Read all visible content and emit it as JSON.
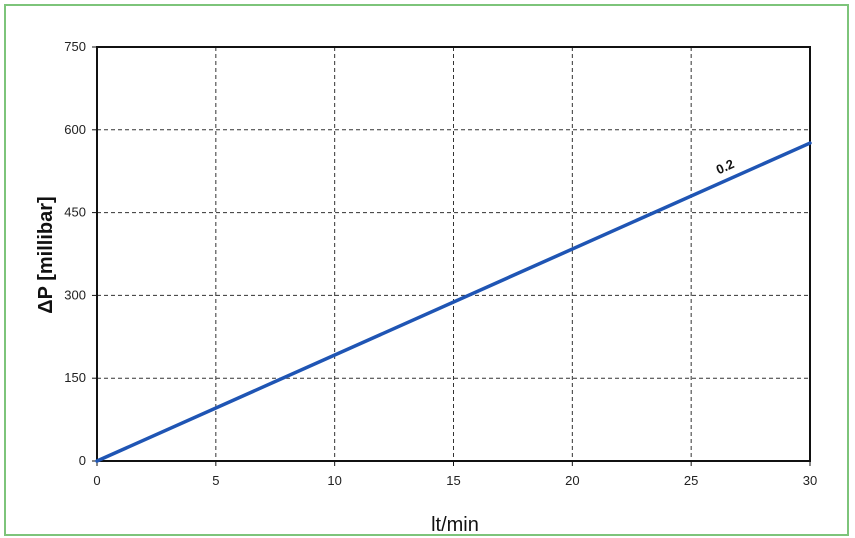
{
  "chart_data": {
    "type": "line",
    "xlabel": "lt/min",
    "ylabel": "ΔP [millibar]",
    "xlim": [
      0,
      30
    ],
    "ylim": [
      0,
      750
    ],
    "x_ticks": [
      "0",
      "5",
      "10",
      "15",
      "20",
      "25",
      "30"
    ],
    "y_ticks": [
      "0",
      "150",
      "300",
      "450",
      "600",
      "750"
    ],
    "grid": true,
    "series": [
      {
        "name": "0.2",
        "color": "#1f55b4",
        "x": [
          0,
          30
        ],
        "y": [
          0,
          576
        ]
      }
    ]
  }
}
